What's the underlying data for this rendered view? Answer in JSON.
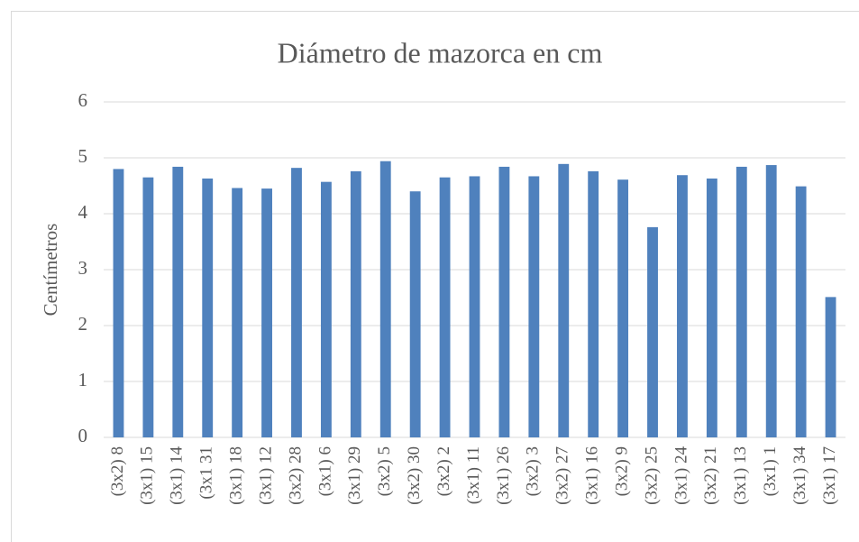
{
  "chart_data": {
    "type": "bar",
    "title": "Diámetro de mazorca en cm",
    "y_label": "Centímetros",
    "categories": [
      "(3x2) 8",
      "(3x1) 15",
      "(3x1) 14",
      "(3x1 31",
      "(3x1) 18",
      "(3x1) 12",
      "(3x2) 28",
      "(3x1) 6",
      "(3x1) 29",
      "(3x2) 5",
      "(3x2) 30",
      "(3x2) 2",
      "(3x1) 11",
      "(3x1) 26",
      "(3x2) 3",
      "(3x2) 27",
      "(3x1) 16",
      "(3x2) 9",
      "(3x2) 25",
      "(3x1) 24",
      "(3x2) 21",
      "(3x1) 13",
      "(3x1) 1",
      "(3x1) 34",
      "(3x1) 17"
    ],
    "values": [
      4.8,
      4.65,
      4.84,
      4.63,
      4.46,
      4.45,
      4.82,
      4.57,
      4.76,
      4.94,
      4.4,
      4.65,
      4.67,
      4.84,
      4.67,
      4.89,
      4.76,
      4.61,
      3.76,
      4.69,
      4.63,
      4.84,
      4.87,
      4.49,
      2.51
    ],
    "color": "#4f81bd",
    "ylim": [
      0,
      6
    ],
    "yticks": [
      0,
      1,
      2,
      3,
      4,
      5,
      6
    ],
    "grid": true
  }
}
